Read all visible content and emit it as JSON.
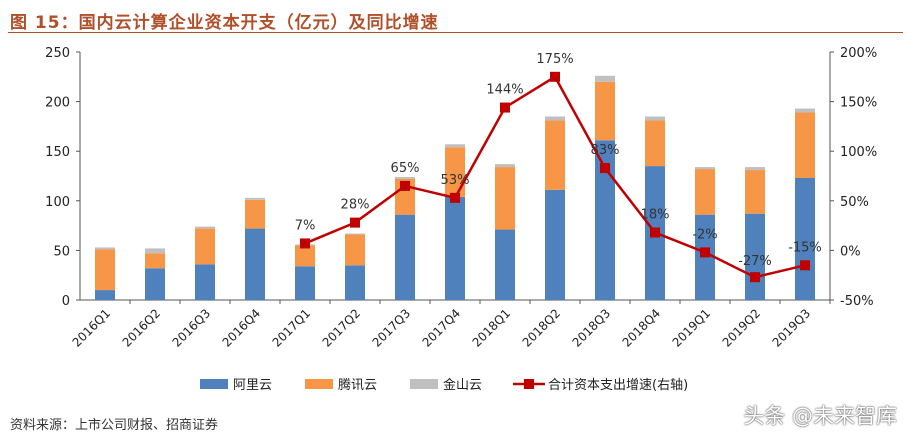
{
  "title": "图 15：国内云计算企业资本开支（亿元）及同比增速",
  "source": "资料来源：上市公司财报、招商证券",
  "watermark": "头条 @未来智库",
  "chart_data": {
    "type": "bar",
    "stacked": true,
    "categories": [
      "2016Q1",
      "2016Q2",
      "2016Q3",
      "2016Q4",
      "2017Q1",
      "2017Q2",
      "2017Q3",
      "2017Q4",
      "2018Q1",
      "2018Q2",
      "2018Q3",
      "2018Q4",
      "2019Q1",
      "2019Q2",
      "2019Q3"
    ],
    "series": [
      {
        "name": "阿里云",
        "type": "bar",
        "axis": "left",
        "color": "#4f81bd",
        "values": [
          10,
          32,
          36,
          72,
          34,
          35,
          86,
          104,
          71,
          111,
          161,
          135,
          86,
          87,
          123
        ]
      },
      {
        "name": "腾讯云",
        "type": "bar",
        "axis": "left",
        "color": "#f79646",
        "values": [
          41,
          15,
          36,
          29,
          21,
          31,
          36,
          50,
          63,
          70,
          59,
          46,
          46,
          44,
          66
        ]
      },
      {
        "name": "金山云",
        "type": "bar",
        "axis": "left",
        "color": "#c0c0c0",
        "values": [
          2,
          5,
          2,
          2,
          1,
          1,
          2,
          3,
          3,
          4,
          6,
          4,
          2,
          3,
          4
        ]
      },
      {
        "name": "合计资本支出增速(右轴)",
        "type": "line",
        "axis": "right",
        "color": "#c00000",
        "values": [
          null,
          null,
          null,
          null,
          7,
          28,
          65,
          53,
          144,
          175,
          83,
          18,
          -2,
          -27,
          -15
        ],
        "labels": [
          "",
          "",
          "",
          "",
          "7%",
          "28%",
          "65%",
          "53%",
          "144%",
          "175%",
          "83%",
          "18%",
          "-2%",
          "-27%",
          "-15%"
        ]
      }
    ],
    "y_left": {
      "range": [
        0,
        250
      ],
      "ticks": [
        "0",
        "50",
        "100",
        "150",
        "200",
        "250"
      ]
    },
    "y_right": {
      "range": [
        -50,
        200
      ],
      "ticks": [
        "-50%",
        "0%",
        "50%",
        "100%",
        "150%",
        "200%"
      ]
    },
    "grid": false,
    "legend": "bottom"
  }
}
